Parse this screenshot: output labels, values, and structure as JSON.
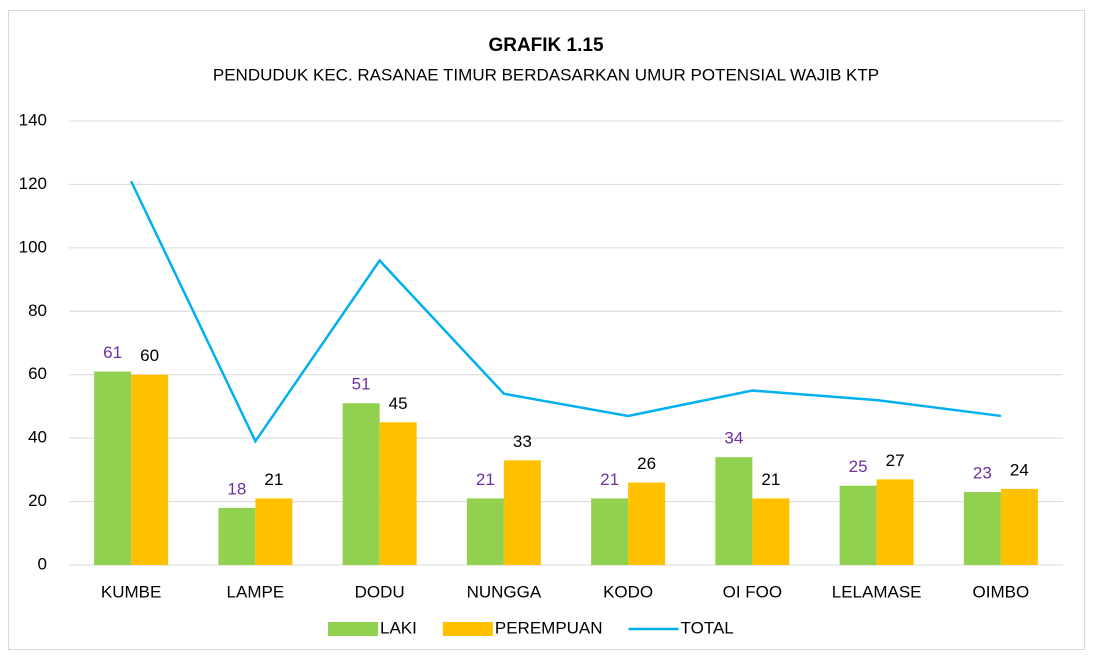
{
  "chart_data": {
    "type": "bar",
    "title": "GRAFIK 1.15",
    "subtitle": "PENDUDUK KEC. RASANAE TIMUR BERDASARKAN UMUR POTENSIAL WAJIB KTP",
    "categories": [
      "KUMBE",
      "LAMPE",
      "DODU",
      "NUNGGA",
      "KODO",
      "OI FOO",
      "LELAMASE",
      "OIMBO"
    ],
    "series": [
      {
        "name": "LAKI",
        "type": "bar",
        "color": "#92d050",
        "label_color": "#7030a0",
        "values": [
          61,
          18,
          51,
          21,
          21,
          34,
          25,
          23
        ]
      },
      {
        "name": "PEREMPUAN",
        "type": "bar",
        "color": "#ffc000",
        "label_color": "#000000",
        "values": [
          60,
          21,
          45,
          33,
          26,
          21,
          27,
          24
        ]
      },
      {
        "name": "TOTAL",
        "type": "line",
        "color": "#00b0f0",
        "values": [
          121,
          39,
          96,
          54,
          47,
          55,
          52,
          47
        ]
      }
    ],
    "ylim": [
      0,
      140
    ],
    "yticks": [
      0,
      20,
      40,
      60,
      80,
      100,
      120,
      140
    ],
    "grid": true,
    "legend": "bottom"
  }
}
